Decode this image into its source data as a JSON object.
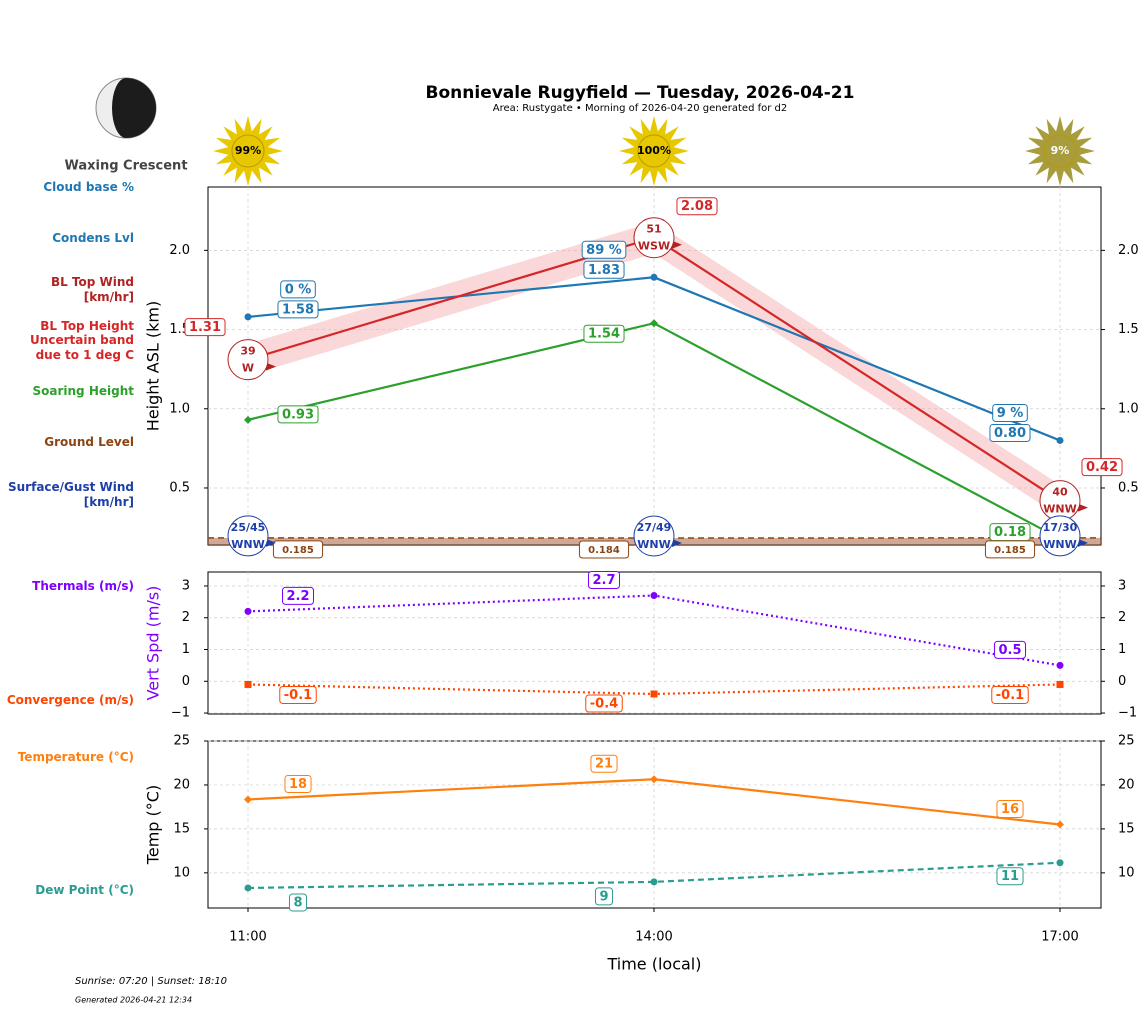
{
  "header": {
    "title": "Bonnievale Rugyfield — Tuesday, 2026-04-21",
    "subtitle": "Area: Rustygate • Morning of 2026-04-20 generated for d2"
  },
  "moon": {
    "phase": "Waxing Crescent"
  },
  "sun": {
    "values": [
      99,
      100,
      9
    ],
    "value_labels": [
      "99%",
      "100%",
      "9%"
    ],
    "colors": [
      "#e6c700",
      "#e6c700",
      "#a89c3c"
    ]
  },
  "footer": {
    "sun_times": "Sunrise: 07:20 | Sunset: 18:10",
    "generated": "Generated 2026-04-21 12:34"
  },
  "chart_data": [
    {
      "type": "line",
      "ylabel": "Height ASL (km)",
      "ylim": [
        0.14,
        2.4
      ],
      "yticks": [
        0.5,
        {
          "value": 1,
          "label": "1.0"
        },
        1.5,
        {
          "value": 2,
          "label": "2.0"
        }
      ],
      "grid": true,
      "series": [
        {
          "name": "Cloud base %",
          "kind": "label",
          "color": "#1f77b4",
          "values": [
            0,
            89,
            9
          ],
          "value_labels": [
            "0 %",
            "89 %",
            "9 %"
          ]
        },
        {
          "name": "Condens Lvl",
          "kind": "line",
          "color": "#1f77b4",
          "marker": "circle",
          "dash": "solid",
          "values": [
            1.58,
            1.83,
            0.8
          ],
          "value_labels": [
            "1.58",
            "1.83",
            "0.80"
          ]
        },
        {
          "name": "BL Top Wind\n[km/hr]",
          "kind": "wind",
          "color": "#b22222",
          "values": [
            39,
            51,
            40
          ],
          "directions": [
            "W",
            "WSW",
            "WNW"
          ]
        },
        {
          "name": "BL Top Height",
          "kind": "line",
          "color": "#d62728",
          "marker": "none",
          "dash": "solid",
          "values": [
            1.31,
            2.08,
            0.42
          ],
          "value_labels": [
            "1.31",
            "2.08",
            "0.42"
          ],
          "band": {
            "name": "Uncertain band\ndue to 1 deg C",
            "color": "#f4a9ab",
            "lower": [
              1.21,
              1.98,
              0.32
            ],
            "upper": [
              1.41,
              2.18,
              0.52
            ]
          }
        },
        {
          "name": "Soaring Height",
          "kind": "line",
          "color": "#2ca02c",
          "marker": "diamond",
          "dash": "solid",
          "values": [
            0.93,
            1.54,
            0.18
          ],
          "value_labels": [
            "0.93",
            "1.54",
            "0.18"
          ]
        },
        {
          "name": "Ground Level",
          "kind": "ground",
          "color": "#8b4513",
          "values": [
            0.185,
            0.184,
            0.185
          ]
        },
        {
          "name": "Surface/Gust Wind\n[km/hr]",
          "kind": "gust",
          "color": "#1f3fa8",
          "values": [
            25,
            27,
            17
          ],
          "gusts": [
            45,
            49,
            30
          ],
          "value_labels": [
            "25/45",
            "27/49",
            "17/30"
          ],
          "directions": [
            "WNW",
            "WNW",
            "WNW"
          ]
        }
      ]
    },
    {
      "type": "line",
      "ylabel": "Vert Spd (m/s)",
      "ylabel_color": "#7f00ff",
      "ylim": [
        -1.03,
        3.44
      ],
      "yticks": [
        {
          "value": -1,
          "label": "−1"
        },
        0,
        1,
        2,
        3
      ],
      "grid": true,
      "series": [
        {
          "name": "Thermals (m/s)",
          "kind": "line",
          "color": "#7f00ff",
          "marker": "circle",
          "dash": "dotted",
          "values": [
            2.2,
            2.7,
            0.5
          ],
          "value_labels": [
            "2.2",
            "2.7",
            "0.5"
          ]
        },
        {
          "name": "Convergence (m/s)",
          "kind": "line",
          "color": "#ff4500",
          "marker": "square",
          "dash": "dotted",
          "values": [
            -0.1,
            -0.4,
            -0.1
          ],
          "value_labels": [
            "-0.1",
            "-0.4",
            "-0.1"
          ]
        }
      ]
    },
    {
      "type": "line",
      "ylabel": "Temp (°C)",
      "xlabel": "Time (local)",
      "categories": [
        "11:00",
        "14:00",
        "17:00"
      ],
      "ylim": [
        6,
        25
      ],
      "yticks": [
        10,
        15,
        20,
        25
      ],
      "grid": true,
      "series": [
        {
          "name": "Temperature (°C)",
          "kind": "line",
          "color": "#ff7f0e",
          "marker": "diamond",
          "dash": "solid",
          "values": [
            18.35,
            20.65,
            15.5
          ],
          "value_labels": [
            "18",
            "21",
            "16"
          ]
        },
        {
          "name": "Dew Point (°C)",
          "kind": "line",
          "color": "#2a9d8f",
          "marker": "circle",
          "dash": "dashed",
          "values": [
            8.28,
            8.97,
            11.15
          ],
          "value_labels": [
            "8",
            "9",
            "11"
          ]
        }
      ]
    }
  ]
}
